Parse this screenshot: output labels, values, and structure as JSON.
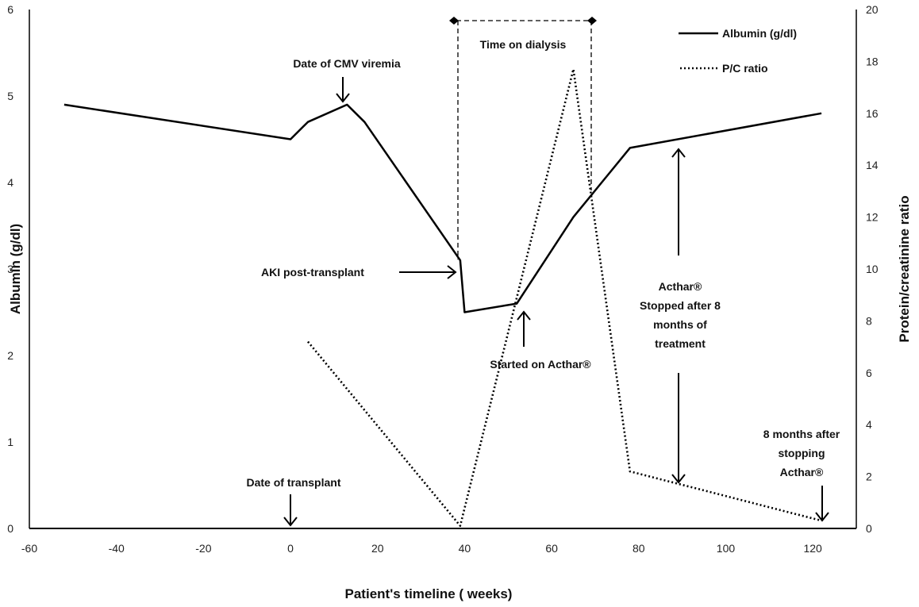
{
  "chart_data": {
    "type": "line",
    "xlabel": "Patient's timeline ( weeks)",
    "ylabel": "Albumin (g/dl)",
    "y2label": "Protein/creatinine ratio",
    "xlim": [
      -60,
      130
    ],
    "ylim": [
      0,
      6
    ],
    "y2lim": [
      0,
      20
    ],
    "x_ticks": [
      -60,
      -40,
      -20,
      0,
      20,
      40,
      60,
      80,
      100,
      120
    ],
    "y_ticks": [
      0,
      1,
      2,
      3,
      4,
      5,
      6
    ],
    "y2_ticks": [
      0,
      2,
      4,
      6,
      8,
      10,
      12,
      14,
      16,
      18,
      20
    ],
    "grid": false,
    "legend_position": "top-right",
    "series": [
      {
        "name": "Albumin (g/dl)",
        "axis": "left",
        "style": "solid",
        "color": "#000000",
        "points": [
          [
            -52,
            4.9
          ],
          [
            0,
            4.5
          ],
          [
            4,
            4.7
          ],
          [
            13,
            4.9
          ],
          [
            17,
            4.7
          ],
          [
            39,
            3.1
          ],
          [
            40,
            2.5
          ],
          [
            52,
            2.6
          ],
          [
            65,
            3.6
          ],
          [
            78,
            4.4
          ],
          [
            122,
            4.8
          ]
        ]
      },
      {
        "name": "P/C ratio",
        "axis": "right",
        "style": "dotted",
        "color": "#000000",
        "points": [
          [
            4,
            7.2
          ],
          [
            39,
            0.1
          ],
          [
            65,
            17.7
          ],
          [
            78,
            2.2
          ],
          [
            122,
            0.3
          ]
        ]
      }
    ],
    "dialysis_bracket": {
      "label": "Time on dialysis",
      "x_start": 39,
      "x_end": 70
    },
    "annotations": [
      {
        "text": "Date of CMV viremia"
      },
      {
        "text": "Date of transplant"
      },
      {
        "text": "AKI post-transplant"
      },
      {
        "text": "Started on Acthar®"
      },
      {
        "text": "Acthar®"
      },
      {
        "text": "Stopped after 8"
      },
      {
        "text": "months of"
      },
      {
        "text": "treatment"
      },
      {
        "text": "8 months after"
      },
      {
        "text": "stopping"
      },
      {
        "text": "Acthar®"
      }
    ]
  }
}
